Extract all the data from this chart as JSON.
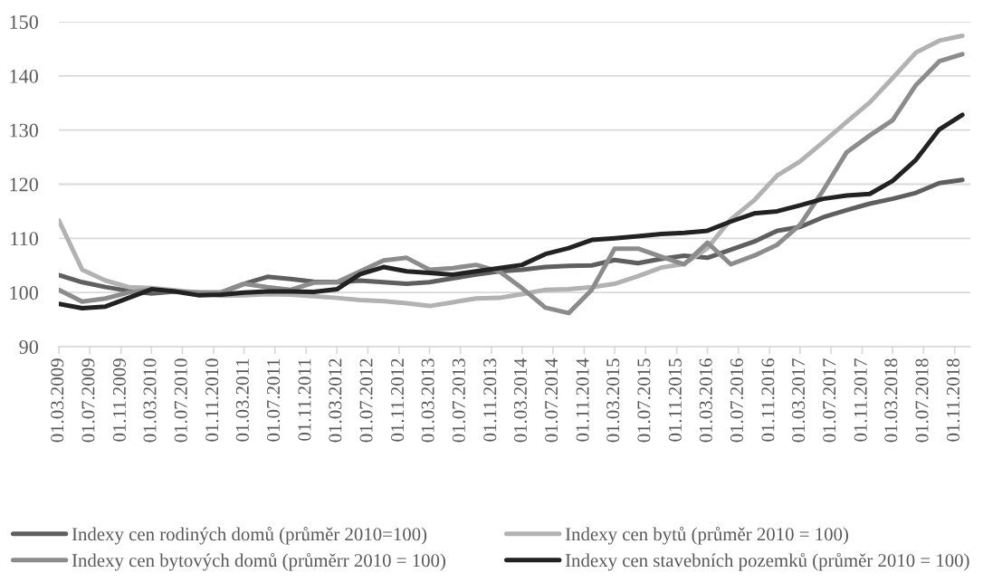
{
  "chart_data": {
    "type": "line",
    "x": [
      "2009-03",
      "2009-06",
      "2009-09",
      "2009-12",
      "2010-03",
      "2010-06",
      "2010-09",
      "2010-12",
      "2011-03",
      "2011-06",
      "2011-09",
      "2011-12",
      "2012-03",
      "2012-06",
      "2012-09",
      "2012-12",
      "2013-03",
      "2013-06",
      "2013-09",
      "2013-12",
      "2014-03",
      "2014-06",
      "2014-09",
      "2014-12",
      "2015-03",
      "2015-06",
      "2015-09",
      "2015-12",
      "2016-03",
      "2016-06",
      "2016-09",
      "2016-12",
      "2017-03",
      "2017-06",
      "2017-09",
      "2017-12",
      "2018-03",
      "2018-06",
      "2018-09",
      "2018-12"
    ],
    "series": [
      {
        "name": "Indexy cen rodiných domů (průměr 2010=100)",
        "color": "#5f5f5f",
        "values": [
          103.2,
          101.9,
          101.0,
          100.3,
          99.8,
          100.2,
          100.0,
          100.0,
          101.6,
          102.9,
          102.5,
          102.0,
          101.9,
          102.2,
          101.9,
          101.6,
          101.9,
          102.6,
          103.3,
          103.9,
          104.2,
          104.7,
          104.9,
          105.0,
          106.0,
          105.4,
          106.2,
          106.8,
          106.4,
          107.9,
          109.4,
          111.4,
          112.1,
          113.9,
          115.2,
          116.4,
          117.3,
          118.4,
          120.2,
          120.8
        ]
      },
      {
        "name": "Indexy cen bytů (průměr 2010 = 100)",
        "color": "#b2b2b2",
        "values": [
          113.3,
          104.2,
          102.2,
          101.0,
          100.8,
          100.4,
          100.0,
          99.4,
          99.5,
          99.7,
          99.6,
          99.3,
          99.0,
          98.6,
          98.4,
          98.0,
          97.5,
          98.2,
          98.9,
          99.0,
          99.7,
          100.5,
          100.6,
          101.0,
          101.6,
          103.0,
          104.6,
          105.3,
          108.2,
          113.5,
          117.0,
          121.6,
          124.2,
          127.8,
          131.5,
          135.1,
          139.6,
          144.3,
          146.5,
          147.4
        ]
      },
      {
        "name": "Indexy cen bytových domů (průměrr 2010 = 100)",
        "color": "#8c8c8c",
        "values": [
          100.5,
          98.3,
          98.9,
          100.0,
          100.5,
          100.2,
          100.0,
          100.0,
          101.6,
          101.0,
          100.5,
          101.8,
          101.9,
          103.9,
          105.9,
          106.4,
          104.2,
          104.5,
          105.1,
          103.9,
          100.8,
          97.2,
          96.2,
          100.5,
          108.1,
          108.1,
          106.6,
          105.2,
          109.2,
          105.2,
          106.8,
          108.8,
          112.5,
          118.9,
          125.9,
          129.0,
          131.8,
          138.3,
          142.7,
          144.0
        ]
      },
      {
        "name": "Indexy cen stavebních pozemků (průměr 2010 = 100)",
        "color": "#222222",
        "values": [
          97.9,
          97.1,
          97.4,
          99.0,
          100.6,
          100.2,
          99.5,
          99.6,
          100.0,
          100.2,
          100.2,
          100.1,
          100.6,
          103.4,
          104.7,
          103.9,
          103.6,
          103.3,
          103.9,
          104.5,
          105.1,
          107.1,
          108.2,
          109.7,
          110.0,
          110.4,
          110.8,
          111.0,
          111.4,
          113.1,
          114.6,
          115.0,
          116.1,
          117.3,
          117.9,
          118.2,
          120.6,
          124.5,
          130.1,
          132.8
        ]
      }
    ],
    "xlim": [
      "2009-03-01",
      "2019-01-01"
    ],
    "xticks": [
      {
        "value": "2009-03-01",
        "label": "01.03.2009"
      },
      {
        "value": "2009-07-01",
        "label": "01.07.2009"
      },
      {
        "value": "2009-11-01",
        "label": "01.11.2009"
      },
      {
        "value": "2010-03-01",
        "label": "01.03.2010"
      },
      {
        "value": "2010-07-01",
        "label": "01.07.2010"
      },
      {
        "value": "2010-11-01",
        "label": "01.11.2010"
      },
      {
        "value": "2011-03-01",
        "label": "01.03.2011"
      },
      {
        "value": "2011-07-01",
        "label": "01.07.2011"
      },
      {
        "value": "2011-11-01",
        "label": "01.11.2011"
      },
      {
        "value": "2012-03-01",
        "label": "01.03.2012"
      },
      {
        "value": "2012-07-01",
        "label": "01.07.2012"
      },
      {
        "value": "2012-11-01",
        "label": "01.11.2012"
      },
      {
        "value": "2013-03-01",
        "label": "01.03.2013"
      },
      {
        "value": "2013-07-01",
        "label": "01.07.2013"
      },
      {
        "value": "2013-11-01",
        "label": "01.11.2013"
      },
      {
        "value": "2014-03-01",
        "label": "01.03.2014"
      },
      {
        "value": "2014-07-01",
        "label": "01.07.2014"
      },
      {
        "value": "2014-11-01",
        "label": "01.11.2014"
      },
      {
        "value": "2015-03-01",
        "label": "01.03.2015"
      },
      {
        "value": "2015-07-01",
        "label": "01.07.2015"
      },
      {
        "value": "2015-11-01",
        "label": "01.11.2015"
      },
      {
        "value": "2016-03-01",
        "label": "01.03.2016"
      },
      {
        "value": "2016-07-01",
        "label": "01.07.2016"
      },
      {
        "value": "2016-11-01",
        "label": "01.11.2016"
      },
      {
        "value": "2017-03-01",
        "label": "01.03.2017"
      },
      {
        "value": "2017-07-01",
        "label": "01.07.2017"
      },
      {
        "value": "2017-11-01",
        "label": "01.11.2017"
      },
      {
        "value": "2018-03-01",
        "label": "01.03.2018"
      },
      {
        "value": "2018-07-01",
        "label": "01.07.2018"
      },
      {
        "value": "2018-11-01",
        "label": "01.11.2018"
      }
    ],
    "ylim": [
      90,
      150
    ],
    "yticks": [
      90,
      100,
      110,
      120,
      130,
      140,
      150
    ],
    "grid": "y",
    "legend": "bottom"
  }
}
